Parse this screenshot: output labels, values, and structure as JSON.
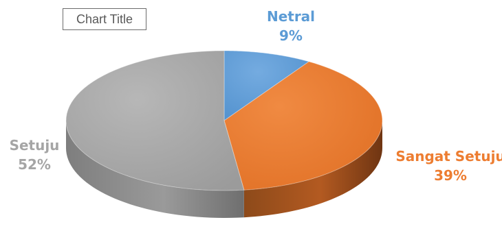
{
  "chart_data": {
    "type": "pie",
    "title": "Chart Title",
    "categories": [
      "Netral",
      "Sangat Setuju",
      "Setuju"
    ],
    "values": [
      9,
      39,
      52
    ],
    "percent_labels": [
      "9%",
      "39%",
      "52%"
    ],
    "colors": [
      "#5b9bd5",
      "#ed7d31",
      "#a5a5a5"
    ],
    "style": "3d"
  }
}
